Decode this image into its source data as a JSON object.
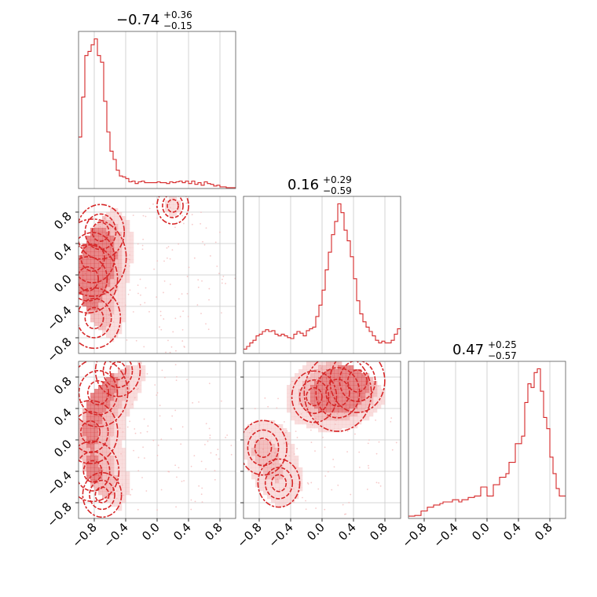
{
  "figure": {
    "panel_titles": [
      {
        "value": "−0.74",
        "plus": "+0.36",
        "minus": "−0.15"
      },
      {
        "value": "0.16",
        "plus": "+0.29",
        "minus": "−0.59"
      },
      {
        "value": "0.47",
        "plus": "+0.25",
        "minus": "−0.57"
      }
    ]
  },
  "colors": {
    "line": "#d62728",
    "fill_strong": "#d62728",
    "fill_light": "#f2b3b3",
    "grid": "#c8c8c8",
    "frame": "#555555"
  },
  "chart_data": [
    {
      "type": "histogram",
      "panel": "param-1-marginal",
      "title": "−0.74 +0.36 −0.15",
      "xlim": [
        -1,
        1
      ],
      "bin_edges": [
        -1.0,
        -0.96,
        -0.92,
        -0.88,
        -0.84,
        -0.8,
        -0.76,
        -0.72,
        -0.68,
        -0.64,
        -0.6,
        -0.56,
        -0.52,
        -0.48,
        -0.44,
        -0.4,
        -0.36,
        -0.32,
        -0.28,
        -0.24,
        -0.2,
        -0.16,
        -0.12,
        -0.08,
        -0.04,
        0.0,
        0.04,
        0.08,
        0.12,
        0.16,
        0.2,
        0.24,
        0.28,
        0.32,
        0.36,
        0.4,
        0.44,
        0.48,
        0.52,
        0.56,
        0.6,
        0.64,
        0.68,
        0.72,
        0.76,
        0.8,
        0.84,
        0.88,
        0.92,
        0.96,
        1.0
      ],
      "counts": [
        62,
        110,
        160,
        165,
        173,
        180,
        160,
        152,
        105,
        68,
        45,
        35,
        22,
        15,
        14,
        12,
        8,
        9,
        6,
        8,
        9,
        7,
        7,
        7,
        7,
        8,
        7,
        7,
        6,
        8,
        7,
        8,
        9,
        7,
        9,
        6,
        9,
        5,
        7,
        4,
        8,
        6,
        5,
        3,
        4,
        2,
        2,
        1,
        1,
        1
      ]
    },
    {
      "type": "histogram",
      "panel": "param-2-marginal",
      "title": "0.16 +0.29 −0.59",
      "xlim": [
        -1,
        1
      ],
      "bin_edges": [
        -1.0,
        -0.96,
        -0.92,
        -0.88,
        -0.84,
        -0.8,
        -0.76,
        -0.72,
        -0.68,
        -0.64,
        -0.6,
        -0.56,
        -0.52,
        -0.48,
        -0.44,
        -0.4,
        -0.36,
        -0.32,
        -0.28,
        -0.24,
        -0.2,
        -0.16,
        -0.12,
        -0.08,
        -0.04,
        0.0,
        0.04,
        0.08,
        0.12,
        0.16,
        0.2,
        0.24,
        0.28,
        0.32,
        0.36,
        0.4,
        0.44,
        0.48,
        0.52,
        0.56,
        0.6,
        0.64,
        0.68,
        0.72,
        0.76,
        0.8,
        0.84,
        0.88,
        0.92,
        0.96,
        1.0
      ],
      "counts": [
        5,
        8,
        12,
        15,
        20,
        22,
        25,
        27,
        25,
        26,
        22,
        20,
        22,
        20,
        18,
        17,
        22,
        25,
        23,
        20,
        26,
        28,
        30,
        42,
        55,
        72,
        95,
        115,
        135,
        150,
        170,
        160,
        140,
        128,
        110,
        85,
        60,
        45,
        36,
        30,
        25,
        20,
        15,
        12,
        14,
        12,
        12,
        15,
        22,
        28
      ]
    },
    {
      "type": "histogram",
      "panel": "param-3-marginal",
      "title": "0.47 +0.25 −0.57",
      "xlim": [
        -1,
        1
      ],
      "bin_edges": [
        -1.0,
        -0.96,
        -0.92,
        -0.88,
        -0.84,
        -0.8,
        -0.76,
        -0.72,
        -0.68,
        -0.64,
        -0.6,
        -0.56,
        -0.52,
        -0.48,
        -0.44,
        -0.4,
        -0.36,
        -0.32,
        -0.28,
        -0.24,
        -0.2,
        -0.16,
        -0.12,
        -0.08,
        -0.04,
        0.0,
        0.04,
        0.08,
        0.12,
        0.16,
        0.2,
        0.24,
        0.28,
        0.32,
        0.36,
        0.4,
        0.44,
        0.48,
        0.52,
        0.56,
        0.6,
        0.64,
        0.68,
        0.72,
        0.76,
        0.8,
        0.84,
        0.88,
        0.92,
        0.96,
        1.0
      ],
      "counts": [
        3,
        3,
        4,
        4,
        10,
        10,
        15,
        15,
        18,
        18,
        20,
        22,
        22,
        22,
        25,
        25,
        22,
        25,
        25,
        28,
        28,
        30,
        30,
        42,
        42,
        30,
        30,
        45,
        45,
        55,
        55,
        60,
        75,
        75,
        100,
        100,
        110,
        155,
        180,
        175,
        195,
        200,
        170,
        135,
        120,
        82,
        60,
        40,
        30,
        30
      ]
    },
    {
      "type": "contour",
      "panel": "param-1-vs-param-2",
      "xlim": [
        -1,
        1
      ],
      "ylim": [
        -1,
        1
      ],
      "density_blobs": [
        {
          "x": -0.82,
          "y": 0.22,
          "w": 0.9
        },
        {
          "x": -0.88,
          "y": -0.05,
          "w": 0.7
        },
        {
          "x": -0.8,
          "y": -0.55,
          "w": 0.55
        },
        {
          "x": -0.72,
          "y": 0.55,
          "w": 0.45
        },
        {
          "x": 0.2,
          "y": 0.88,
          "w": 0.2
        }
      ]
    },
    {
      "type": "contour",
      "panel": "param-1-vs-param-3",
      "xlim": [
        -1,
        1
      ],
      "ylim": [
        -1,
        1
      ],
      "density_blobs": [
        {
          "x": -0.75,
          "y": 0.6,
          "w": 0.7
        },
        {
          "x": -0.85,
          "y": 0.1,
          "w": 0.6
        },
        {
          "x": -0.82,
          "y": -0.4,
          "w": 0.55
        },
        {
          "x": -0.5,
          "y": 0.88,
          "w": 0.4
        },
        {
          "x": -0.7,
          "y": -0.7,
          "w": 0.3
        }
      ]
    },
    {
      "type": "contour",
      "panel": "param-2-vs-param-3",
      "xlim": [
        -1,
        1
      ],
      "ylim": [
        -1,
        1
      ],
      "density_blobs": [
        {
          "x": 0.2,
          "y": 0.6,
          "w": 0.9
        },
        {
          "x": 0.45,
          "y": 0.75,
          "w": 0.6
        },
        {
          "x": -0.1,
          "y": 0.55,
          "w": 0.4
        },
        {
          "x": -0.75,
          "y": -0.1,
          "w": 0.45
        },
        {
          "x": -0.55,
          "y": -0.55,
          "w": 0.35
        }
      ]
    }
  ],
  "axes": {
    "ticks": [
      -0.8,
      -0.4,
      0.0,
      0.4,
      0.8
    ],
    "tick_labels": [
      "−0.8",
      "−0.4",
      "0.0",
      "0.4",
      "0.8"
    ]
  }
}
